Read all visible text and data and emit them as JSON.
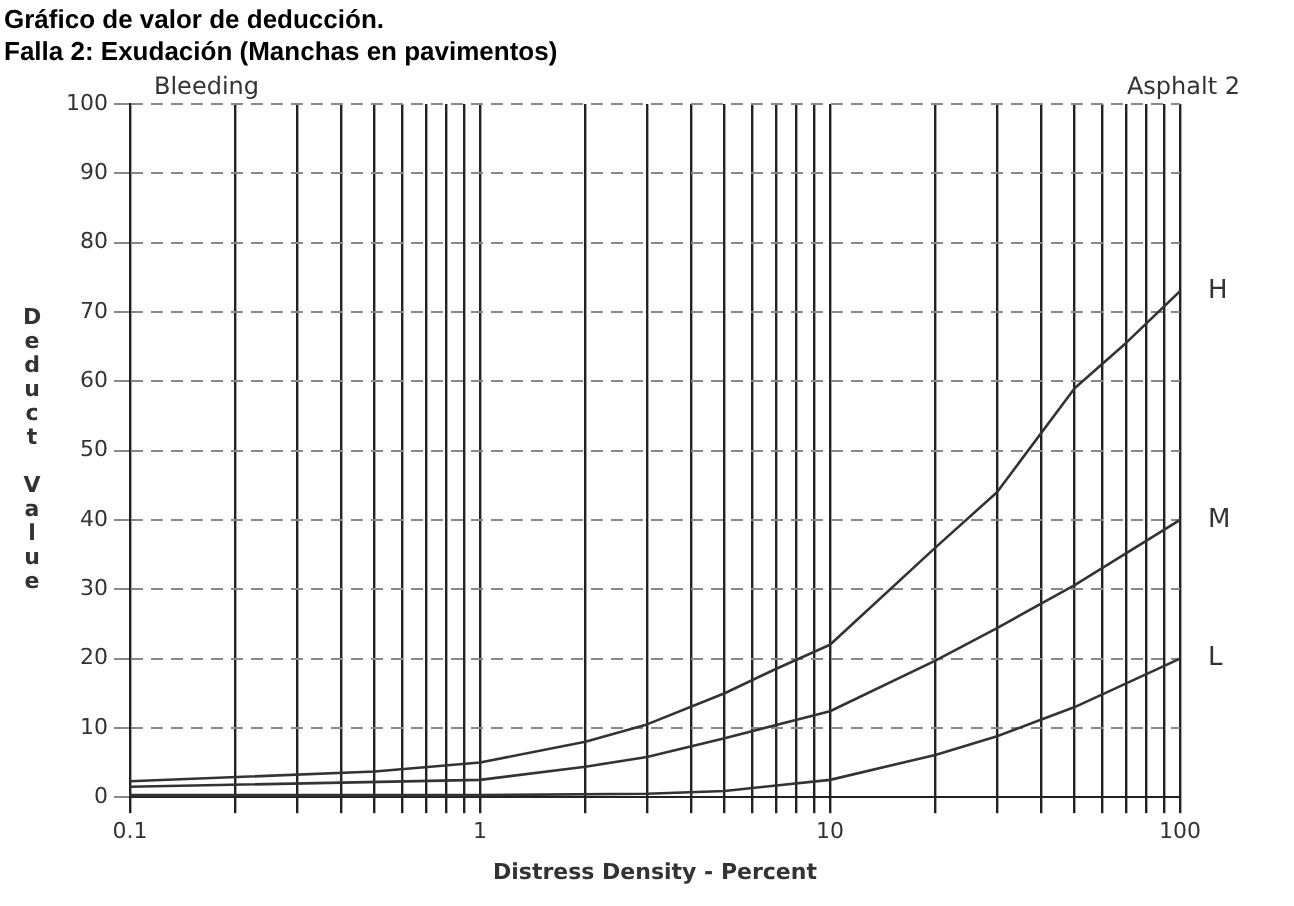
{
  "chart_data": {
    "type": "line",
    "title": "Gráfico de valor de deducción.",
    "subtitle": "Falla 2: Exudación (Manchas en pavimentos)",
    "xlabel": "Distress Density - Percent",
    "ylabel": "Deduct Value",
    "annotations": [
      "Bleeding",
      "Asphalt 2"
    ],
    "log": "x",
    "grid": true,
    "legend": false,
    "marker": "none",
    "line_style": "solid",
    "xlim": [
      0.1,
      100
    ],
    "ylim": [
      0,
      100
    ],
    "xticks": [
      {
        "value": 0.1,
        "label": "0.1"
      },
      {
        "value": 0.2,
        "label": null
      },
      {
        "value": 0.3,
        "label": null
      },
      {
        "value": 0.4,
        "label": null
      },
      {
        "value": 0.5,
        "label": null
      },
      {
        "value": 0.6,
        "label": null
      },
      {
        "value": 0.7,
        "label": null
      },
      {
        "value": 0.8,
        "label": null
      },
      {
        "value": 0.9,
        "label": null
      },
      {
        "value": 1,
        "label": "1"
      },
      {
        "value": 2,
        "label": null
      },
      {
        "value": 3,
        "label": null
      },
      {
        "value": 4,
        "label": null
      },
      {
        "value": 5,
        "label": null
      },
      {
        "value": 6,
        "label": null
      },
      {
        "value": 7,
        "label": null
      },
      {
        "value": 8,
        "label": null
      },
      {
        "value": 9,
        "label": null
      },
      {
        "value": 10,
        "label": "10"
      },
      {
        "value": 20,
        "label": null
      },
      {
        "value": 30,
        "label": null
      },
      {
        "value": 40,
        "label": null
      },
      {
        "value": 50,
        "label": null
      },
      {
        "value": 60,
        "label": null
      },
      {
        "value": 70,
        "label": null
      },
      {
        "value": 80,
        "label": null
      },
      {
        "value": 90,
        "label": null
      },
      {
        "value": 100,
        "label": "100"
      }
    ],
    "yticks": [
      0,
      10,
      20,
      30,
      40,
      50,
      60,
      70,
      80,
      90,
      100
    ],
    "series": [
      {
        "name": "H",
        "color": "#333333",
        "x": [
          0.1,
          0.5,
          1,
          2,
          3,
          5,
          7,
          10,
          20,
          30,
          50,
          70,
          100
        ],
        "values": [
          2.3,
          3.7,
          5,
          8,
          10.5,
          15,
          18.5,
          22,
          36,
          44,
          59,
          65.5,
          73
        ]
      },
      {
        "name": "M",
        "color": "#333333",
        "x": [
          0.1,
          1,
          2,
          3,
          5,
          10,
          20,
          30,
          50,
          100
        ],
        "values": [
          1.5,
          2.5,
          4.4,
          5.8,
          8.5,
          12.4,
          19.7,
          24.4,
          30.6,
          40
        ]
      },
      {
        "name": "L",
        "color": "#333333",
        "x": [
          0.1,
          1,
          3,
          5,
          10,
          20,
          30,
          50,
          100
        ],
        "values": [
          0.3,
          0.3,
          0.5,
          0.9,
          2.5,
          6.1,
          8.8,
          13,
          20
        ]
      }
    ]
  }
}
